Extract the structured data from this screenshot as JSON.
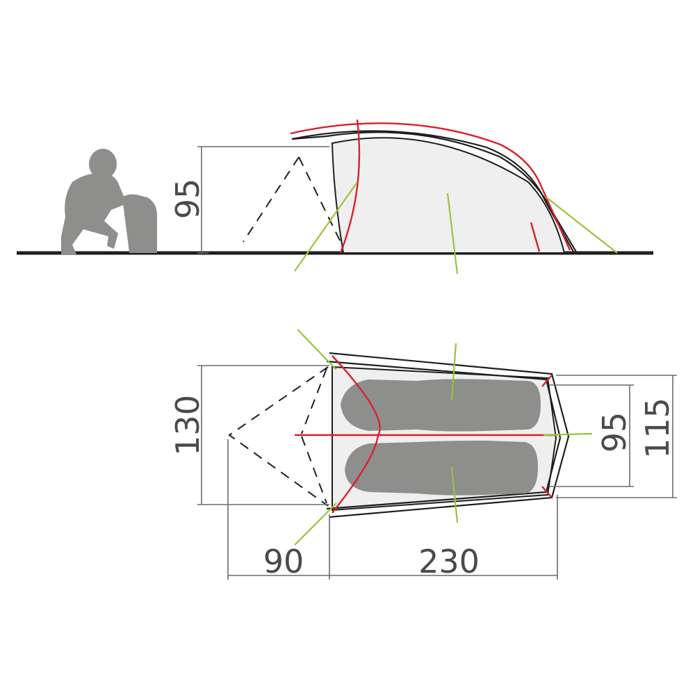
{
  "dimensions": {
    "side_height": "95",
    "plan_width": "130",
    "plan_inner_width": "95",
    "plan_outer_width": "115",
    "vestibule_length": "90",
    "inner_length": "230"
  },
  "colors": {
    "pole": "#d8202a",
    "guyline": "#9ac33a",
    "outline": "#1e1e1e",
    "figure": "#8e8e8c",
    "inner_fill": "#efefef",
    "dimension": "#4a4a4a"
  },
  "icons": {
    "person": "crouching-person-icon",
    "backpack": "backpack-icon",
    "sleeper": "sleeping-bag-person-icon"
  }
}
